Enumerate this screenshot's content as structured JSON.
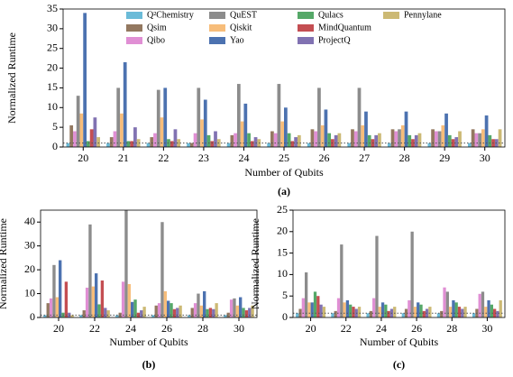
{
  "chart_data": [
    {
      "type": "bar",
      "caption": "(a)",
      "x_label": "Number of Qubits",
      "y_label": "Normalized Runtime",
      "categories": [
        "20",
        "21",
        "22",
        "23",
        "24",
        "25",
        "26",
        "27",
        "28",
        "29",
        "30"
      ],
      "ylim": [
        0,
        35
      ],
      "yticks": [
        0,
        5,
        10,
        15,
        20,
        25,
        30,
        35
      ],
      "reference_line": 1,
      "legend": "top",
      "series": [
        {
          "name": "Q²Chemistry",
          "color": "#6bbbd8",
          "values": [
            1,
            1,
            1,
            1,
            1,
            1,
            1,
            1,
            1,
            1,
            1
          ]
        },
        {
          "name": "Qsim",
          "color": "#937860",
          "values": [
            5.5,
            2.5,
            2.5,
            1,
            3,
            4,
            4.5,
            4.5,
            4.5,
            4.5,
            4.5
          ]
        },
        {
          "name": "Qibo",
          "color": "#e08fd4",
          "values": [
            4,
            4,
            3.5,
            3.5,
            3.5,
            3.5,
            4,
            4,
            4,
            4,
            3.5
          ]
        },
        {
          "name": "QuEST",
          "color": "#8c8c8c",
          "values": [
            13,
            15,
            14.5,
            15,
            16,
            16,
            15,
            15,
            4.5,
            4,
            3.5
          ]
        },
        {
          "name": "Qiskit",
          "color": "#f7bd7a",
          "values": [
            8.5,
            8.5,
            7.5,
            7,
            6.5,
            6.5,
            5.5,
            5.5,
            5.5,
            5.5,
            4.5
          ]
        },
        {
          "name": "Yao",
          "color": "#4c72b0",
          "values": [
            34,
            21.5,
            15,
            12,
            11,
            10,
            9.5,
            9,
            9,
            8.5,
            8
          ]
        },
        {
          "name": "Qulacs",
          "color": "#55a868",
          "values": [
            1.5,
            1.5,
            2,
            3,
            3.5,
            3.5,
            3.5,
            3,
            3,
            3,
            3
          ]
        },
        {
          "name": "MindQuantum",
          "color": "#c44e52",
          "values": [
            4.5,
            1.5,
            1.5,
            1.5,
            1.5,
            1.5,
            2,
            2,
            2,
            2,
            2
          ]
        },
        {
          "name": "ProjectQ",
          "color": "#8172b2",
          "values": [
            7.5,
            5,
            4.5,
            4,
            2.5,
            2.5,
            3,
            3,
            3,
            2.5,
            2
          ]
        },
        {
          "name": "Pennylane",
          "color": "#ccb974",
          "values": [
            2.5,
            2,
            2,
            2,
            2,
            3,
            3.5,
            3.5,
            3.5,
            4,
            4.5
          ]
        }
      ]
    },
    {
      "type": "bar",
      "caption": "(b)",
      "x_label": "Number of Qubits",
      "y_label": "Normalized Runtime",
      "categories": [
        "20",
        "22",
        "24",
        "26",
        "28",
        "30"
      ],
      "ylim": [
        0,
        45
      ],
      "yticks": [
        0,
        10,
        20,
        30,
        40
      ],
      "reference_line": 1,
      "series": [
        {
          "color": "#6bbbd8",
          "values": [
            1,
            1,
            1,
            1,
            1,
            1
          ]
        },
        {
          "color": "#937860",
          "values": [
            6,
            3,
            2,
            5,
            4,
            2
          ]
        },
        {
          "color": "#e08fd4",
          "values": [
            8,
            12.5,
            15,
            6,
            6,
            7.5
          ]
        },
        {
          "color": "#8c8c8c",
          "values": [
            22,
            39,
            45,
            40,
            10,
            8
          ]
        },
        {
          "color": "#f7bd7a",
          "values": [
            8.5,
            13,
            14,
            11,
            5,
            5
          ]
        },
        {
          "color": "#4c72b0",
          "values": [
            24,
            18.5,
            6.5,
            7,
            11,
            8.5
          ]
        },
        {
          "color": "#55a868",
          "values": [
            2,
            5.5,
            7.5,
            6,
            3.5,
            4
          ]
        },
        {
          "color": "#c44e52",
          "values": [
            15,
            15.5,
            2,
            3.5,
            4,
            3
          ]
        },
        {
          "color": "#8172b2",
          "values": [
            2,
            4,
            3,
            4,
            3.5,
            4
          ]
        },
        {
          "color": "#ccb974",
          "values": [
            1,
            3,
            4.5,
            5,
            6,
            5
          ]
        }
      ]
    },
    {
      "type": "bar",
      "caption": "(c)",
      "x_label": "Number of Qubits",
      "y_label": "Normalized Runtime",
      "categories": [
        "20",
        "22",
        "24",
        "26",
        "28",
        "30"
      ],
      "ylim": [
        0,
        25
      ],
      "yticks": [
        0,
        5,
        10,
        15,
        20,
        25
      ],
      "reference_line": 1,
      "series": [
        {
          "color": "#6bbbd8",
          "values": [
            1,
            1,
            1,
            1,
            1,
            1
          ]
        },
        {
          "color": "#937860",
          "values": [
            2,
            1.5,
            1.5,
            2,
            1.5,
            2
          ]
        },
        {
          "color": "#e08fd4",
          "values": [
            4.5,
            4.5,
            4.5,
            4,
            7,
            5.5
          ]
        },
        {
          "color": "#8c8c8c",
          "values": [
            10.5,
            17,
            19,
            20,
            6,
            6
          ]
        },
        {
          "color": "#f7bd7a",
          "values": [
            3.5,
            3.5,
            2.5,
            2.5,
            2.5,
            2.5
          ]
        },
        {
          "color": "#4c72b0",
          "values": [
            3.5,
            4,
            3.5,
            3.5,
            4,
            4
          ]
        },
        {
          "color": "#55a868",
          "values": [
            6,
            3,
            3,
            3,
            3.5,
            3
          ]
        },
        {
          "color": "#c44e52",
          "values": [
            5,
            2.5,
            1.5,
            1.5,
            2.5,
            2
          ]
        },
        {
          "color": "#8172b2",
          "values": [
            3,
            2,
            2,
            2,
            2,
            1.5
          ]
        },
        {
          "color": "#ccb974",
          "values": [
            2.5,
            2.5,
            2.5,
            2.5,
            2.5,
            4
          ]
        }
      ]
    }
  ]
}
